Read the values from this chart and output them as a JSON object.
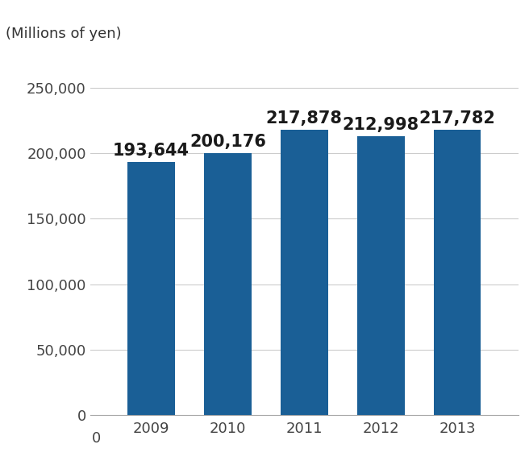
{
  "categories": [
    "2009",
    "2010",
    "2011",
    "2012",
    "2013"
  ],
  "values": [
    193644,
    200176,
    217878,
    212998,
    217782
  ],
  "bar_color": "#1a5f96",
  "bar_edge_color": "#1a5f96",
  "ylabel": "(Millions of yen)",
  "ylim": [
    0,
    275000
  ],
  "yticks": [
    0,
    50000,
    100000,
    150000,
    200000,
    250000
  ],
  "ytick_labels": [
    "0",
    "50,000",
    "100,000",
    "150,000",
    "200,000",
    "250,000"
  ],
  "value_labels": [
    "193,644",
    "200,176",
    "217,878",
    "212,998",
    "217,782"
  ],
  "background_color": "#ffffff",
  "grid_color": "#cccccc",
  "tick_fontsize": 13,
  "ylabel_fontsize": 13,
  "value_label_fontsize": 15
}
